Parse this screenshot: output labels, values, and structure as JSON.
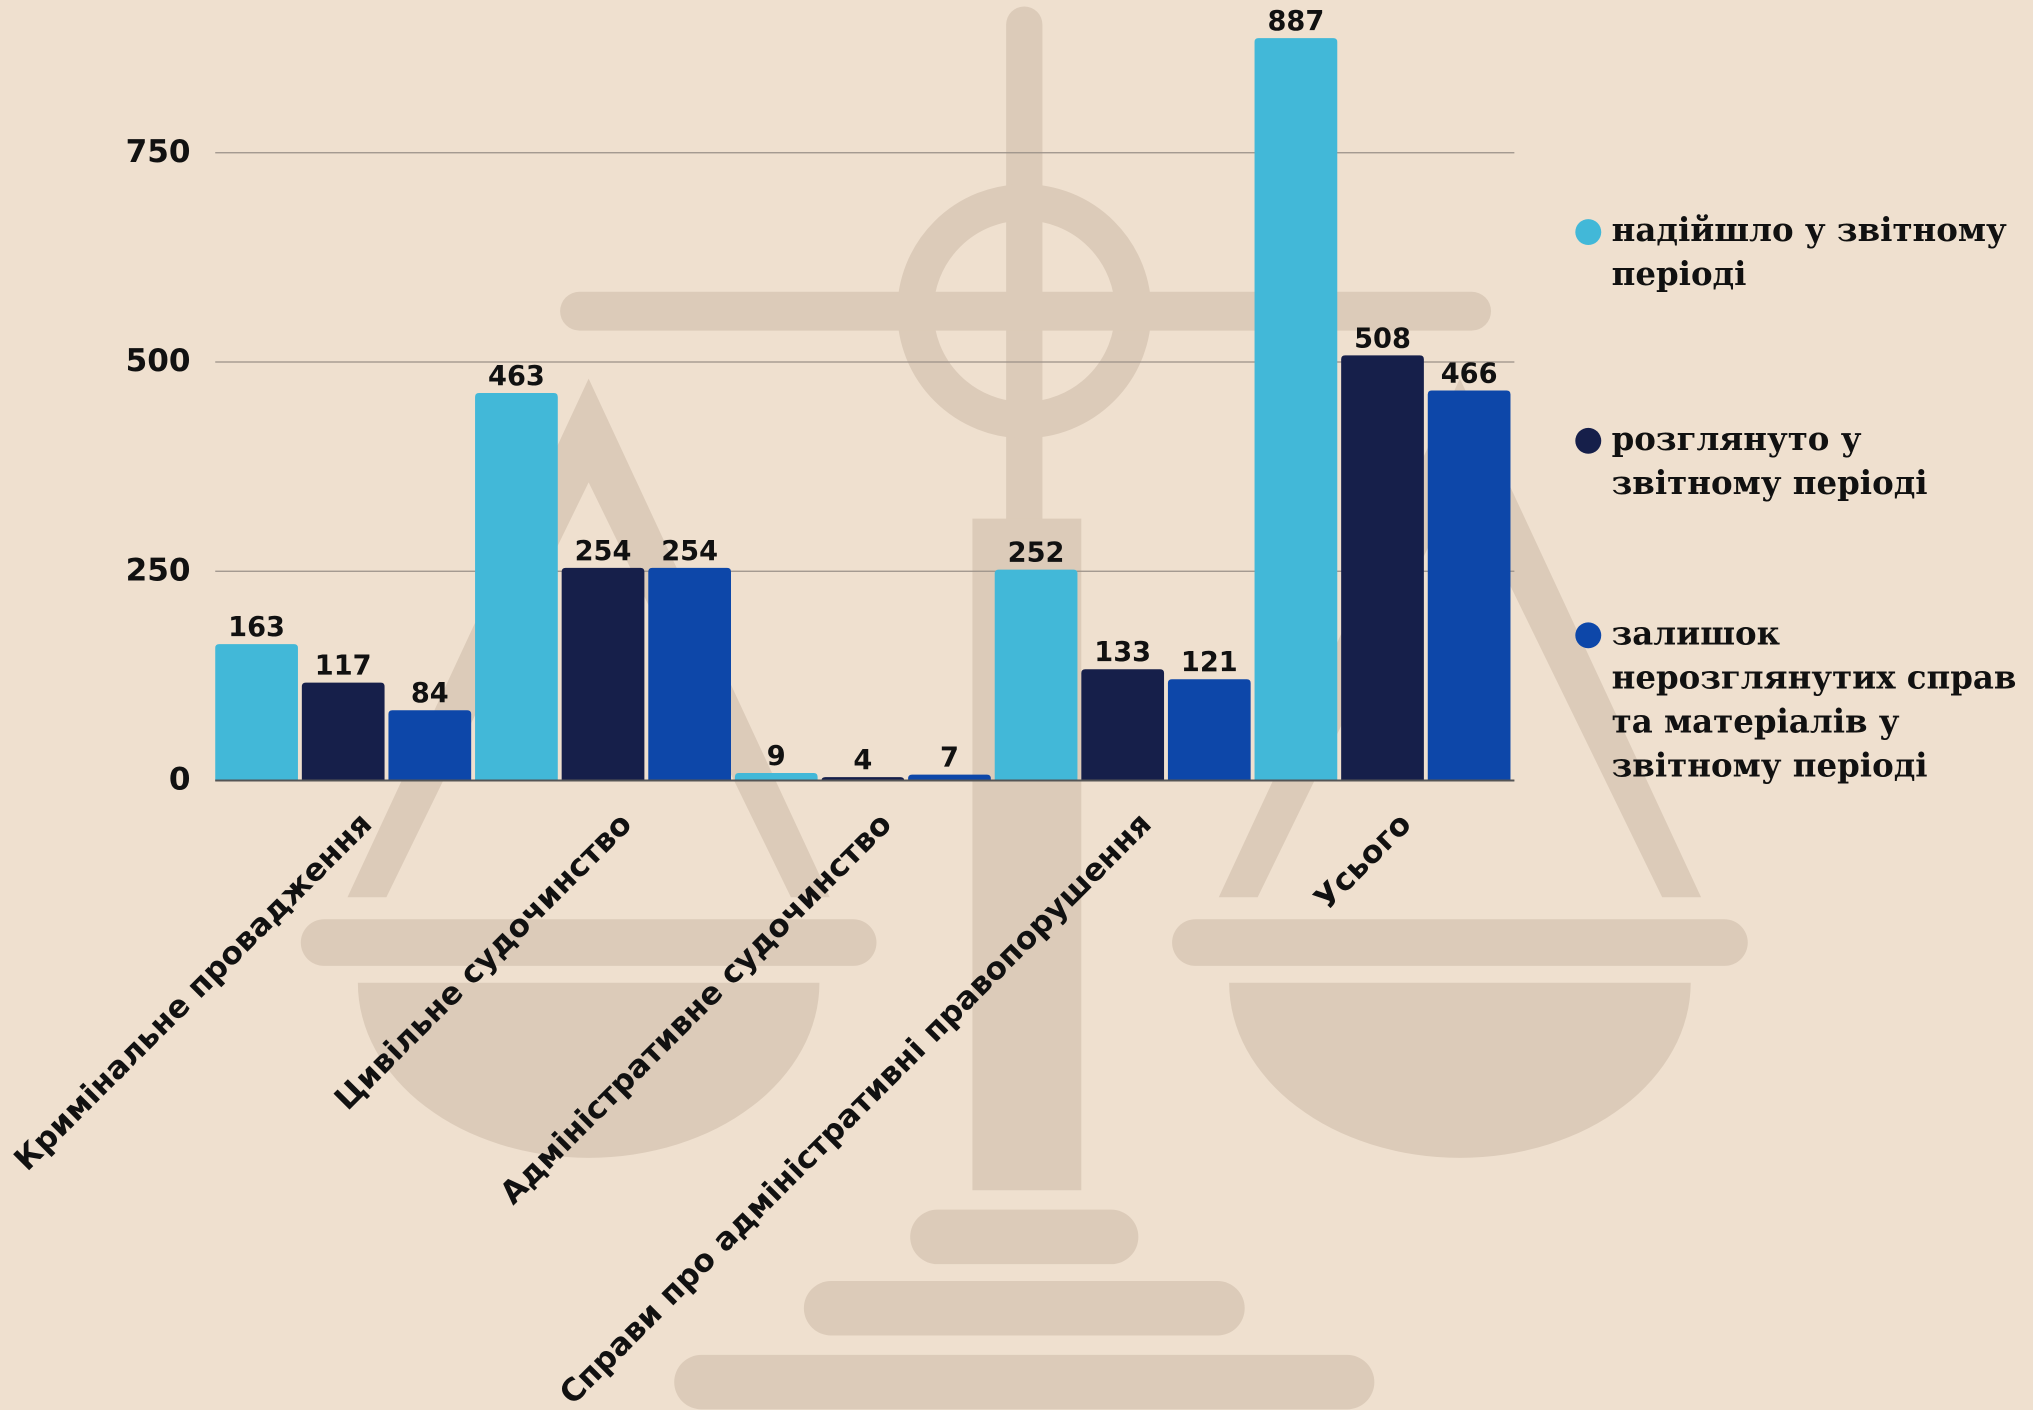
{
  "chart_data": {
    "type": "bar",
    "categories": [
      "Кримінальне провадження",
      "Цивільне судочинство",
      "Адміністративне судочинство",
      "Справи про адміністративні правопорушення",
      "Усього"
    ],
    "series": [
      {
        "name": "надійшло у звітному періоді",
        "color": "#42b8d8",
        "values": [
          163,
          463,
          9,
          252,
          887
        ]
      },
      {
        "name": "розглянуто у звітному періоді",
        "color": "#161f4a",
        "values": [
          117,
          254,
          4,
          133,
          508
        ]
      },
      {
        "name": "залишок нерозглянутих справ та матеріалів у звітному періоді",
        "color": "#0d47a9",
        "values": [
          84,
          254,
          7,
          121,
          466
        ]
      }
    ],
    "ylim": [
      0,
      900
    ],
    "yticks": [
      0,
      250,
      500,
      750
    ],
    "grid": true,
    "legend": "right"
  }
}
